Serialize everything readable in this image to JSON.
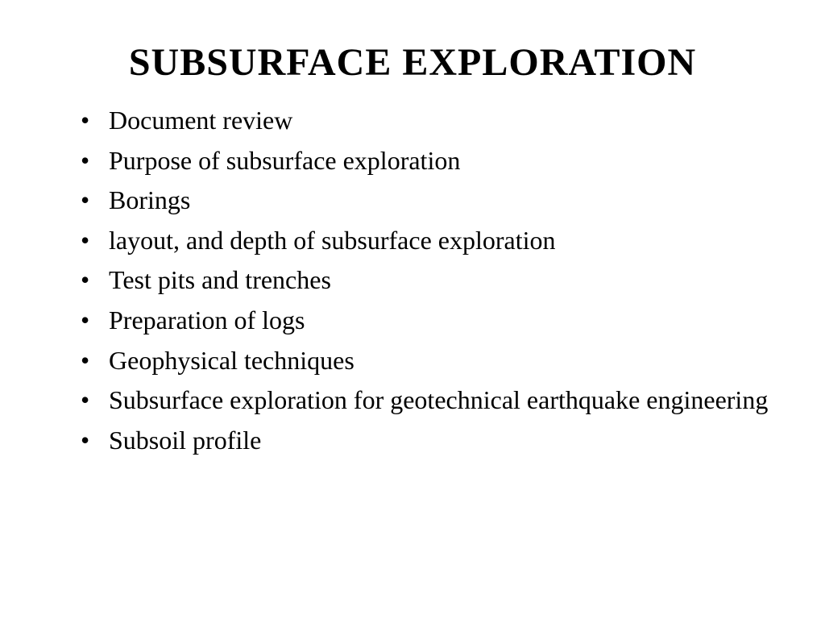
{
  "slide": {
    "title": "SUBSURFACE EXPLORATION",
    "title_fontsize": 48,
    "title_weight": "bold",
    "body_fontsize": 32,
    "font_family": "Times New Roman",
    "text_color": "#000000",
    "background_color": "#ffffff",
    "bullets": [
      "Document review",
      "Purpose of subsurface exploration",
      "Borings",
      "layout, and depth of subsurface exploration",
      "Test pits and trenches",
      "Preparation of logs",
      "Geophysical techniques",
      "Subsurface exploration for geotechnical earthquake engineering",
      "Subsoil profile"
    ]
  }
}
